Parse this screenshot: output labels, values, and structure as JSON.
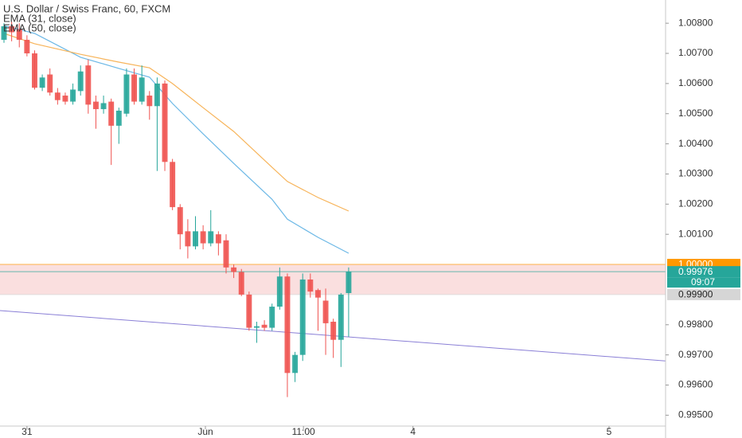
{
  "chart_data": {
    "type": "candlestick",
    "title": "U.S. Dollar / Swiss Franc, 60, FXCM",
    "x": [
      0,
      1,
      2,
      3,
      4,
      5,
      6,
      7,
      8,
      9,
      10,
      11,
      12,
      13,
      14,
      15,
      16,
      17,
      18,
      19,
      20,
      21,
      22,
      23,
      24,
      25,
      26,
      27,
      28,
      29,
      30,
      31,
      32,
      33,
      34,
      35,
      36,
      37,
      38,
      39,
      40,
      41,
      42,
      43,
      44,
      45
    ],
    "open": [
      1.00745,
      1.0079,
      1.0078,
      1.00745,
      1.007,
      1.00586,
      1.0063,
      1.0057,
      1.0056,
      1.0054,
      1.00575,
      1.0066,
      1.0054,
      1.00515,
      1.0054,
      1.0046,
      1.005,
      1.0063,
      1.0054,
      1.0056,
      1.00525,
      1.006,
      1.0034,
      1.0019,
      1.0011,
      1.0006,
      1.0011,
      1.0007,
      1.001,
      1.0008,
      0.9999,
      0.99975,
      0.999,
      0.9979,
      0.998,
      0.9979,
      0.9986,
      0.9996,
      0.9964,
      0.997,
      0.9995,
      0.99915,
      0.9988,
      0.9981,
      0.9975,
      0.99905
    ],
    "high": [
      1.008,
      1.00805,
      1.008,
      1.0076,
      1.0071,
      1.0063,
      1.0065,
      1.00585,
      1.0057,
      1.006,
      1.0066,
      1.0068,
      1.0056,
      1.0056,
      1.0055,
      1.0052,
      1.0065,
      1.0065,
      1.0066,
      1.00575,
      1.0062,
      1.0061,
      1.0035,
      1.002,
      1.0015,
      1.0016,
      1.0013,
      1.0018,
      1.0011,
      1.001,
      1.0,
      0.99985,
      0.9991,
      0.9981,
      0.99815,
      0.9987,
      0.9999,
      0.9997,
      0.9971,
      0.9997,
      0.9997,
      0.9992,
      0.9992,
      0.9982,
      0.99905,
      0.9999
    ],
    "low": [
      1.00735,
      1.0074,
      1.0072,
      1.0069,
      1.0058,
      1.00575,
      1.0056,
      1.0053,
      1.0053,
      1.0053,
      1.0056,
      1.005,
      1.0045,
      1.005,
      1.0033,
      1.004,
      1.0049,
      1.0053,
      1.0053,
      1.0048,
      1.0031,
      1.0031,
      1.0018,
      1.0005,
      1.0002,
      1.0005,
      1.0005,
      1.0006,
      1.0003,
      0.9997,
      0.99955,
      0.99895,
      0.9978,
      0.9974,
      0.9978,
      0.9978,
      0.9985,
      0.9956,
      0.9961,
      0.9968,
      0.9989,
      0.9978,
      0.997,
      0.9969,
      0.9966,
      0.9976
    ],
    "close": [
      1.0079,
      1.0077,
      1.00745,
      1.007,
      1.00586,
      1.0062,
      1.0057,
      1.00545,
      1.0054,
      1.0058,
      1.0064,
      1.0053,
      1.00515,
      1.00535,
      1.0046,
      1.0051,
      1.0063,
      1.0054,
      1.0062,
      1.00525,
      1.006,
      1.0034,
      1.0019,
      1.001,
      1.0006,
      1.0011,
      1.0007,
      1.0011,
      1.0007,
      0.9999,
      0.99975,
      0.999,
      0.9979,
      0.99795,
      0.9979,
      0.9986,
      0.9996,
      0.9964,
      0.997,
      0.9995,
      0.9991,
      0.9989,
      0.99805,
      0.9975,
      0.999,
      0.99976
    ],
    "up_color": "#26a69a",
    "down_color": "#ef5350",
    "lines": [
      {
        "name": "EMA (31, close)",
        "color": "#6cb8e6",
        "x": [
          0,
          4,
          10,
          15,
          19,
          22,
          26,
          30,
          35,
          37,
          41,
          45
        ],
        "values": [
          1.00792,
          1.00766,
          1.00687,
          1.0065,
          1.00621,
          1.00534,
          1.00433,
          1.00335,
          1.00216,
          1.0015,
          1.0009,
          1.00037
        ]
      },
      {
        "name": "EMA (50, close)",
        "color": "#f7b45a",
        "x": [
          0,
          4,
          10,
          15,
          19,
          22,
          26,
          30,
          35,
          37,
          41,
          45
        ],
        "values": [
          1.00766,
          1.00732,
          1.00697,
          1.00671,
          1.00652,
          1.006,
          1.0052,
          1.00441,
          1.00322,
          1.00275,
          1.00222,
          1.00177
        ]
      }
    ],
    "trend_line": {
      "color": "#8a7fd6",
      "x": [
        -0.52,
        86.38
      ],
      "values": [
        0.99847,
        0.9968
      ]
    },
    "zone": {
      "range": [
        0.999,
        1.0
      ],
      "color": "#f7c9c9"
    },
    "price_labels": [
      {
        "value": 1.0,
        "label": "1.00000",
        "color": "#ff9800"
      },
      {
        "value": 0.99976,
        "label": "0.99976",
        "color": "#26a69a"
      },
      {
        "value": 0.999,
        "label": "0.99900",
        "color": "#d6d6d6"
      }
    ],
    "countdown": "09:07",
    "xlim": [
      -0.52,
      86.38
    ],
    "xticks": [
      {
        "value": 3.0,
        "label": "31"
      },
      {
        "value": 26.3,
        "label": "Jun"
      },
      {
        "value": 39.1,
        "label": "11:00"
      },
      {
        "value": 53.4,
        "label": "4"
      },
      {
        "value": 79.0,
        "label": "5"
      }
    ],
    "ylim": [
      0.99464,
      1.00877
    ],
    "yticks": [
      {
        "value": 0.995,
        "label": "0.99500"
      },
      {
        "value": 0.996,
        "label": "0.99600"
      },
      {
        "value": 0.997,
        "label": "0.99700"
      },
      {
        "value": 0.998,
        "label": "0.99800"
      },
      {
        "value": 1.001,
        "label": "1.00100"
      },
      {
        "value": 1.002,
        "label": "1.00200"
      },
      {
        "value": 1.003,
        "label": "1.00300"
      },
      {
        "value": 1.004,
        "label": "1.00400"
      },
      {
        "value": 1.005,
        "label": "1.00500"
      },
      {
        "value": 1.006,
        "label": "1.00600"
      },
      {
        "value": 1.007,
        "label": "1.00700"
      },
      {
        "value": 1.008,
        "label": "1.00800"
      }
    ]
  }
}
